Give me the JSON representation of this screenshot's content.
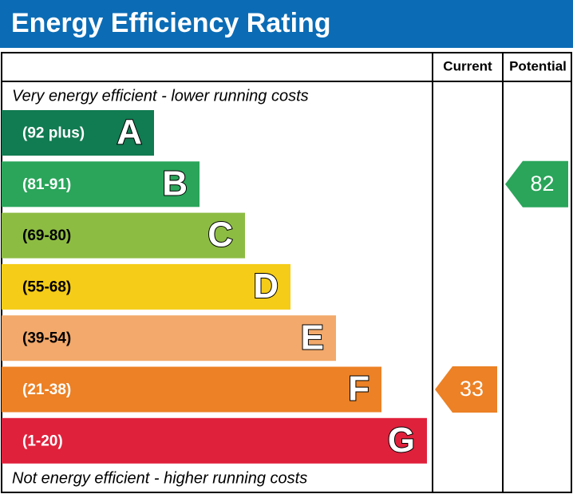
{
  "chart_data": {
    "type": "epc",
    "title": "Energy Efficiency Rating",
    "columns": [
      "Current",
      "Potential"
    ],
    "top_note": "Very energy efficient - lower running costs",
    "bottom_note": "Not energy efficient - higher running costs",
    "bands": [
      {
        "letter": "A",
        "range": "(92 plus)",
        "color": "#117b51"
      },
      {
        "letter": "B",
        "range": "(81-91)",
        "color": "#2aa55a"
      },
      {
        "letter": "C",
        "range": "(69-80)",
        "color": "#8dbc43"
      },
      {
        "letter": "D",
        "range": "(55-68)",
        "color": "#f5cc18"
      },
      {
        "letter": "E",
        "range": "(39-54)",
        "color": "#f2a96b"
      },
      {
        "letter": "F",
        "range": "(21-38)",
        "color": "#ec8125"
      },
      {
        "letter": "G",
        "range": "(1-20)",
        "color": "#e0213c"
      }
    ],
    "values": [
      33,
      82
    ]
  }
}
